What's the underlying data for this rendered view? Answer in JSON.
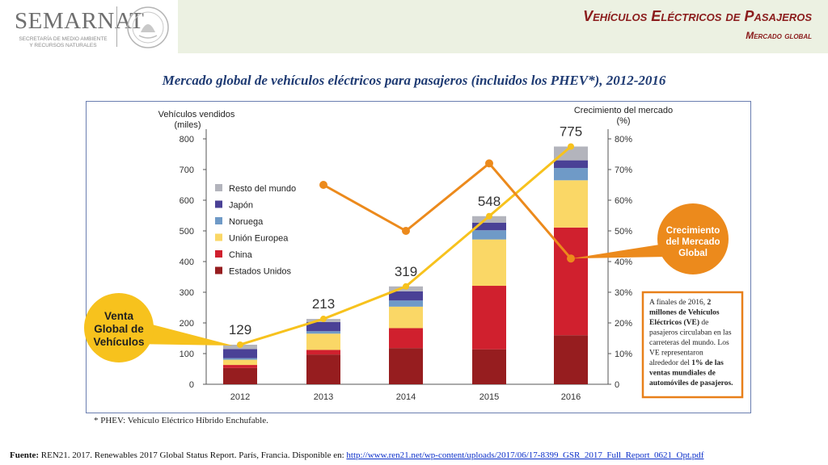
{
  "header": {
    "logo": "SEMARNAT",
    "logo_sub_1": "SECRETARÍA DE MEDIO AMBIENTE",
    "logo_sub_2": "Y RECURSOS NATURALES",
    "title": "Vehículos Eléctricos de Pasajeros",
    "subtitle": "Mercado global"
  },
  "main_title": "Mercado global de vehículos eléctricos para pasajeros (incluidos los PHEV*), 2012-2016",
  "note": "* PHEV: Vehículo Eléctrico Híbrido Enchufable.",
  "footer": {
    "label": "Fuente:",
    "text": " REN21. 2017. Renewables 2017 Global Status Report. París, Francia. Disponible en: ",
    "link": "http://www.ren21.net/wp-content/uploads/2017/06/17-8399_GSR_2017_Full_Report_0621_Opt.pdf"
  },
  "colors": {
    "resto": "#b3b4bc",
    "japon": "#4a4196",
    "noruega": "#6f9ac7",
    "ue": "#fad766",
    "china": "#d0202e",
    "eeuu": "#961d1f",
    "sales_line": "#f7c21d",
    "growth_line": "#ec8a1c",
    "callout_border": "#e8801a"
  },
  "chart_data": {
    "type": "bar",
    "stacked": true,
    "categories": [
      "2012",
      "2013",
      "2014",
      "2015",
      "2016"
    ],
    "series": [
      {
        "name": "Estados Unidos",
        "values": [
          53,
          97,
          118,
          114,
          160
        ]
      },
      {
        "name": "China",
        "values": [
          10,
          15,
          65,
          207,
          351
        ]
      },
      {
        "name": "Unión Europea",
        "values": [
          17,
          53,
          70,
          151,
          154
        ]
      },
      {
        "name": "Noruega",
        "values": [
          5,
          8,
          20,
          30,
          40
        ]
      },
      {
        "name": "Japón",
        "values": [
          30,
          30,
          30,
          25,
          25
        ]
      },
      {
        "name": "Resto del mundo",
        "values": [
          14,
          10,
          16,
          21,
          45
        ]
      }
    ],
    "totals": [
      129,
      213,
      319,
      548,
      775
    ],
    "growth": {
      "name": "Crecimiento del Mercado Global",
      "x": [
        "2013",
        "2014",
        "2015",
        "2016"
      ],
      "values": [
        65,
        50,
        72,
        41
      ]
    },
    "y_left_label_1": "Vehículos vendidos",
    "y_left_label_2": "(miles)",
    "y_right_label_1": "Crecimiento del mercado",
    "y_right_label_2": "(%)",
    "ylim": [
      0,
      800
    ],
    "y_ticks": [
      "0",
      "100",
      "200",
      "300",
      "400",
      "500",
      "600",
      "700",
      "800"
    ],
    "y2lim": [
      0,
      80
    ],
    "y2_ticks": [
      "0",
      "10%",
      "20%",
      "30%",
      "40%",
      "50%",
      "60%",
      "70%",
      "80%"
    ],
    "legend_placement": "left",
    "grid": false,
    "callout_sales": [
      "Venta",
      "Global de",
      "Vehículos"
    ],
    "callout_growth": [
      "Crecimiento",
      "del Mercado",
      "Global"
    ],
    "info_box": [
      [
        {
          "t": "A finales de 2016, ",
          "b": false
        },
        {
          "t": "2",
          "b": true
        }
      ],
      [
        {
          "t": "millones de Vehículos",
          "b": true
        }
      ],
      [
        {
          "t": "Eléctricos (VE)",
          "b": true
        },
        {
          "t": " de",
          "b": false
        }
      ],
      [
        {
          "t": "pasajeros circulaban en las",
          "b": false
        }
      ],
      [
        {
          "t": "carreteras del mundo. Los",
          "b": false
        }
      ],
      [
        {
          "t": "VE representaron",
          "b": false
        }
      ],
      [
        {
          "t": "alrededor del ",
          "b": false
        },
        {
          "t": "1% de las",
          "b": true
        }
      ],
      [
        {
          "t": "ventas mundiales de",
          "b": true
        }
      ],
      [
        {
          "t": "automóviles de pasajeros.",
          "b": true
        }
      ]
    ]
  }
}
